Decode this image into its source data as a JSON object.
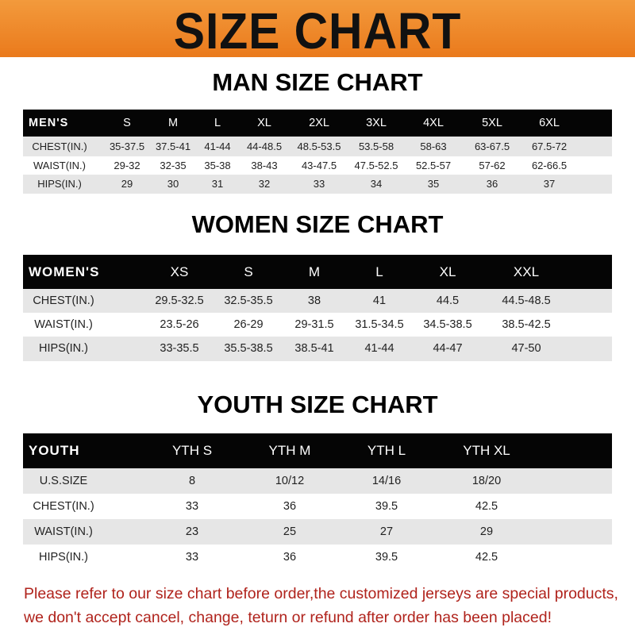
{
  "banner": {
    "title": "SIZE CHART",
    "color": "#ee8426"
  },
  "men": {
    "title": "MAN SIZE CHART",
    "header": [
      "MEN'S",
      "S",
      "M",
      "L",
      "XL",
      "2XL",
      "3XL",
      "4XL",
      "5XL",
      "6XL"
    ],
    "rows": [
      [
        "CHEST(IN.)",
        "35-37.5",
        "37.5-41",
        "41-44",
        "44-48.5",
        "48.5-53.5",
        "53.5-58",
        "58-63",
        "63-67.5",
        "67.5-72"
      ],
      [
        "WAIST(IN.)",
        "29-32",
        "32-35",
        "35-38",
        "38-43",
        "43-47.5",
        "47.5-52.5",
        "52.5-57",
        "57-62",
        "62-66.5"
      ],
      [
        "HIPS(IN.)",
        "29",
        "30",
        "31",
        "32",
        "33",
        "34",
        "35",
        "36",
        "37"
      ]
    ]
  },
  "women": {
    "title": "WOMEN SIZE CHART",
    "header": [
      "WOMEN'S",
      "XS",
      "S",
      "M",
      "L",
      "XL",
      "XXL"
    ],
    "rows": [
      [
        "CHEST(IN.)",
        "29.5-32.5",
        "32.5-35.5",
        "38",
        "41",
        "44.5",
        "44.5-48.5"
      ],
      [
        "WAIST(IN.)",
        "23.5-26",
        "26-29",
        "29-31.5",
        "31.5-34.5",
        "34.5-38.5",
        "38.5-42.5"
      ],
      [
        "HIPS(IN.)",
        "33-35.5",
        "35.5-38.5",
        "38.5-41",
        "41-44",
        "44-47",
        "47-50"
      ]
    ]
  },
  "youth": {
    "title": "YOUTH SIZE CHART",
    "header": [
      "YOUTH",
      "YTH S",
      "YTH M",
      "YTH L",
      "YTH XL"
    ],
    "rows": [
      [
        "U.S.SIZE",
        "8",
        "10/12",
        "14/16",
        "18/20"
      ],
      [
        "CHEST(IN.)",
        "33",
        "36",
        "39.5",
        "42.5"
      ],
      [
        "WAIST(IN.)",
        "23",
        "25",
        "27",
        "29"
      ],
      [
        "HIPS(IN.)",
        "33",
        "36",
        "39.5",
        "42.5"
      ]
    ]
  },
  "footer": {
    "line1": "Please refer to our size chart before order,the customized jerseys are special products,",
    "line2": "we don't accept cancel, change, teturn or refund after order has been placed!",
    "color": "#b0231c"
  }
}
